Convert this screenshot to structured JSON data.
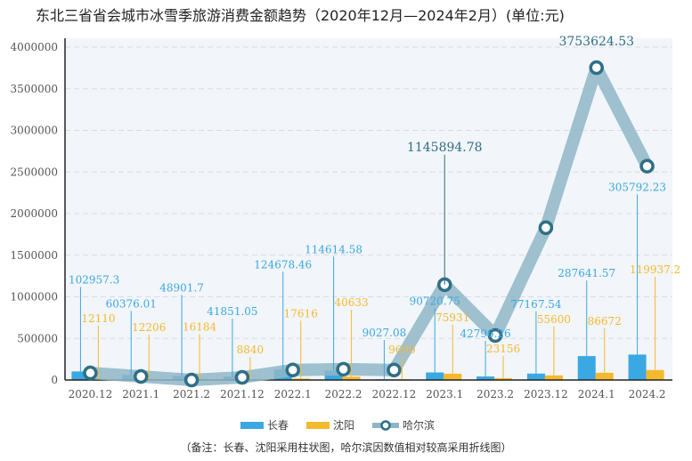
{
  "title": "东北三省省会城市冰雪季旅游消费金额趋势（2020年12月—2024年2月）(单位:元)",
  "note": "（备注：长春、沈阳采用柱状图，哈尔滨因数值相对较高采用折线图）",
  "colors": {
    "changchun": "#3aa8e2",
    "shenyang": "#f5b92e",
    "harbin": "#8fb6c8",
    "harbin_marker": "#2f6f86"
  },
  "chart_data": {
    "type": "bar",
    "title": "东北三省省会城市冰雪季旅游消费金额趋势（2020年12月—2024年2月）(单位:元)",
    "categories": [
      "2020.12",
      "2021.1",
      "2021.2",
      "2021.12",
      "2022.1",
      "2022.2",
      "2022.12",
      "2023.1",
      "2023.2",
      "2023.12",
      "2024.1",
      "2024.2"
    ],
    "ylim": [
      0,
      4000000
    ],
    "yticks": [
      0,
      500000,
      1000000,
      1500000,
      2000000,
      2500000,
      3000000,
      3500000,
      4000000
    ],
    "grid": true,
    "legend_position": "bottom",
    "series": [
      {
        "name": "长春",
        "type": "bar",
        "values": [
          102957.3,
          60376.01,
          48901.7,
          41851.05,
          124678.46,
          114614.58,
          9027.08,
          90720.75,
          42796.26,
          77167.54,
          287641.57,
          305792.23
        ],
        "labels": [
          "102957.3",
          "60376.01",
          "48901.7",
          "41851.05",
          "124678.46",
          "114614.58",
          "9027.08",
          "90720.75",
          "42796.26",
          "77167.54",
          "287641.57",
          "305792.23"
        ]
      },
      {
        "name": "沈阳",
        "type": "bar",
        "values": [
          12110,
          12206,
          16184,
          8840,
          17616,
          40633,
          9690,
          75931,
          23156,
          55600,
          86672,
          119937.2
        ],
        "labels": [
          "12110",
          "12206",
          "16184",
          "8840",
          "17616",
          "40633",
          "9690",
          "75931",
          "23156",
          "55600",
          "86672",
          "119937.2"
        ]
      },
      {
        "name": "哈尔滨",
        "type": "line",
        "values": [
          85000,
          43000,
          0,
          32000,
          120000,
          130000,
          120000,
          1145894.78,
          535000,
          1830000,
          3753624.53,
          2570000
        ],
        "labels": [
          "",
          "",
          "",
          "",
          "",
          "",
          "",
          "1145894.78",
          "",
          "",
          "3753624.53",
          ""
        ]
      }
    ]
  }
}
